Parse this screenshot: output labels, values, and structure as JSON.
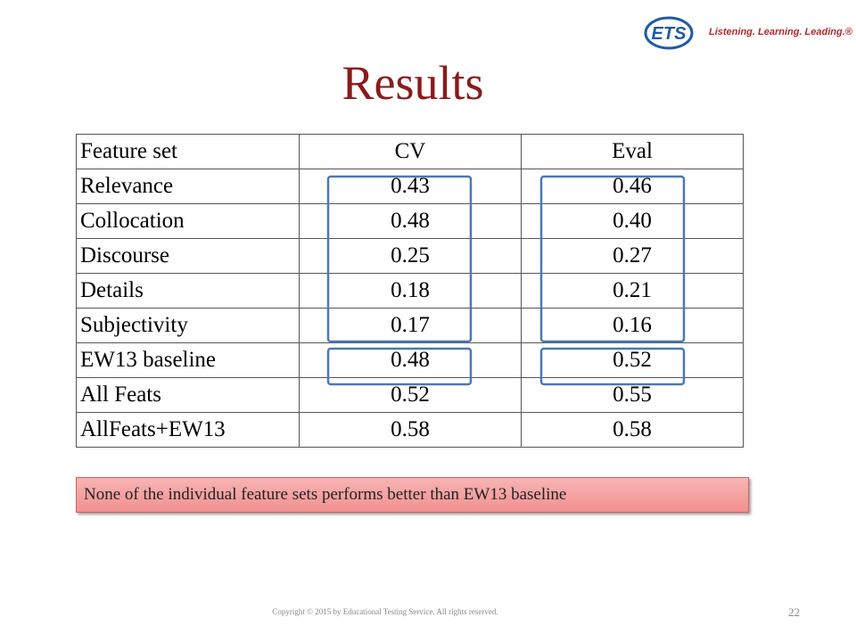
{
  "logo": {
    "mark": "ETS",
    "tagline": "Listening. Learning. Leading.®"
  },
  "title": "Results",
  "table": {
    "header": [
      "Feature set",
      "CV",
      "Eval"
    ],
    "rows": [
      [
        "Relevance",
        "0.43",
        "0.46"
      ],
      [
        "Collocation",
        "0.48",
        "0.40"
      ],
      [
        "Discourse",
        "0.25",
        "0.27"
      ],
      [
        "Details",
        "0.18",
        "0.21"
      ],
      [
        "Subjectivity",
        "0.17",
        "0.16"
      ],
      [
        "EW13 baseline",
        "0.48",
        "0.52"
      ],
      [
        "All Feats",
        "0.52",
        "0.55"
      ],
      [
        "AllFeats+EW13",
        "0.58",
        "0.58"
      ]
    ]
  },
  "callout": "None of the individual feature sets performs better than EW13 baseline",
  "footer": {
    "copyright": "Copyright © 2015 by Educational Testing Service. All rights reserved.",
    "page": "22"
  }
}
